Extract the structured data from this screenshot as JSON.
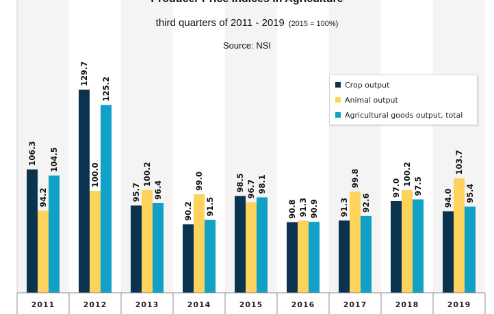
{
  "chart_data": {
    "type": "bar",
    "title": "Producer Price Indices in Agriculture",
    "subtitle": "third quarters of 2011 - 2019",
    "subtitle_note": "(2015 = 100%)",
    "source": "Source: NSI",
    "categories": [
      "2011",
      "2012",
      "2013",
      "2014",
      "2015",
      "2016",
      "2017",
      "2018",
      "2019"
    ],
    "series": [
      {
        "name": "Crop output",
        "color": "#0b3350",
        "values": [
          106.3,
          129.7,
          95.7,
          90.2,
          98.5,
          90.8,
          91.3,
          97.0,
          94.0
        ]
      },
      {
        "name": "Animal output",
        "color": "#fdd35c",
        "values": [
          94.2,
          100.0,
          100.2,
          99.0,
          96.7,
          91.3,
          99.8,
          100.2,
          103.7
        ]
      },
      {
        "name": "Agricultural goods output, total",
        "color": "#10a0c8",
        "values": [
          104.5,
          125.2,
          96.4,
          91.5,
          98.1,
          90.9,
          92.6,
          97.5,
          95.4
        ]
      }
    ],
    "value_labels": [
      [
        "106.3",
        "129.7",
        "95.7",
        "90.2",
        "98.5",
        "90.8",
        "91.3",
        "97.0",
        "94.0"
      ],
      [
        "94.2",
        "100.0",
        "100.2",
        "99.0",
        "96.7",
        "91.3",
        "99.8",
        "100.2",
        "103.7"
      ],
      [
        "104.5",
        "125.2",
        "96.4",
        "91.5",
        "98.1",
        "90.9",
        "92.6",
        "97.5",
        "95.4"
      ]
    ],
    "legend_position": "top-right",
    "grid": false
  }
}
